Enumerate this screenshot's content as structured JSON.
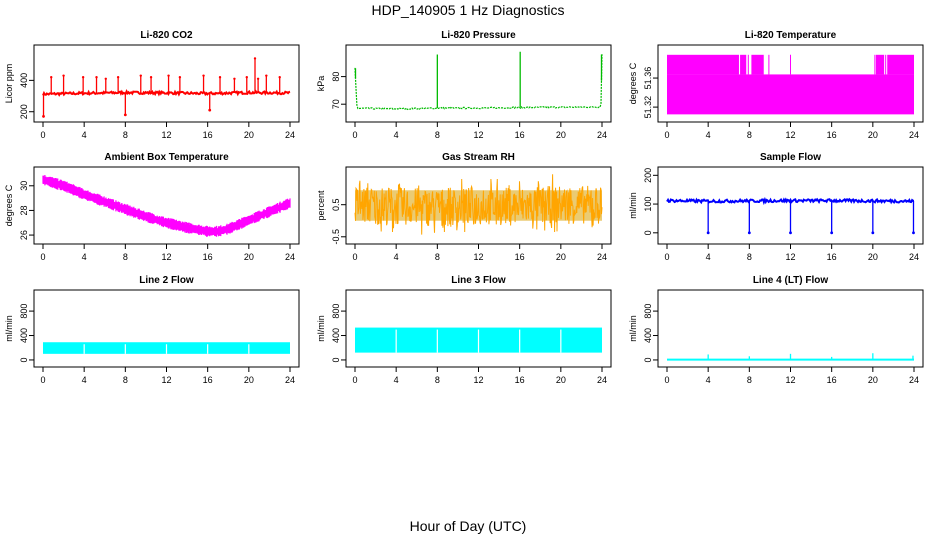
{
  "page": {
    "title": "HDP_140905  1 Hz Diagnostics",
    "x_title": "Hour of Day (UTC)"
  },
  "chart_data": [
    {
      "id": "co2",
      "type": "line",
      "title": "Li-820 CO2",
      "ylabel": "Licor ppm",
      "color": "#ff0000",
      "xlim": [
        0,
        24
      ],
      "ylim": [
        160,
        600
      ],
      "xticks": [
        0,
        4,
        8,
        12,
        16,
        20,
        24
      ],
      "yticks": [
        200,
        400
      ],
      "ytick_labels": [
        "200",
        "400"
      ],
      "series": [
        {
          "x": [
            0,
            4,
            8,
            12,
            16,
            20,
            24
          ],
          "y": [
            312,
            318,
            322,
            320,
            316,
            322,
            320
          ]
        }
      ],
      "annotations": {
        "spikes_hour": [
          0.8,
          2.0,
          3.9,
          5.2,
          6.1,
          7.3,
          9.5,
          10.5,
          12.2,
          13.3,
          15.6,
          17.2,
          18.6,
          19.8,
          20.6,
          20.9,
          21.7,
          23.0
        ],
        "spike_values": [
          420,
          430,
          420,
          420,
          410,
          420,
          430,
          420,
          430,
          420,
          430,
          420,
          410,
          420,
          540,
          410,
          430,
          420
        ],
        "dips_hour": [
          0.05,
          8.0,
          16.2
        ],
        "dip_values": [
          170,
          180,
          210
        ]
      }
    },
    {
      "id": "pressure",
      "type": "line",
      "title": "Li-820 Pressure",
      "ylabel": "kPa",
      "color": "#00bb00",
      "xlim": [
        0,
        24
      ],
      "ylim": [
        65,
        90
      ],
      "xticks": [
        0,
        4,
        8,
        12,
        16,
        20,
        24
      ],
      "yticks": [
        70,
        80
      ],
      "ytick_labels": [
        "70",
        "80"
      ],
      "series": [
        {
          "x": [
            0,
            0.2,
            4,
            8,
            12,
            16,
            20,
            23.9,
            24
          ],
          "y": [
            83,
            68.5,
            68.3,
            68.6,
            68.6,
            68.8,
            68.9,
            69.0,
            88
          ]
        }
      ],
      "annotations": {
        "spikes_hour": [
          0.05,
          8.0,
          16.05,
          23.95
        ],
        "spike_values": [
          83,
          88,
          89,
          88
        ]
      }
    },
    {
      "id": "licor_temp",
      "type": "band",
      "title": "Li-820 Temperature",
      "ylabel": "degrees C",
      "color": "#ff00ff",
      "xlim": [
        0,
        24
      ],
      "ylim": [
        51.305,
        51.4
      ],
      "xticks": [
        0,
        4,
        8,
        12,
        16,
        20,
        24
      ],
      "yticks": [
        51.32,
        51.36
      ],
      "ytick_labels": [
        "51.32",
        "51.36"
      ],
      "band": {
        "low": 51.31,
        "high": 51.365,
        "upper_segments_hour": [
          [
            0,
            6.9
          ],
          [
            7.1,
            7.7
          ],
          [
            8.2,
            9.4
          ],
          [
            20.3,
            21.1
          ],
          [
            21.4,
            24
          ]
        ],
        "upper_high": 51.392
      }
    },
    {
      "id": "ambient",
      "type": "band",
      "title": "Ambient Box Temperature",
      "ylabel": "degrees C",
      "color": "#ff00ff",
      "xlim": [
        0,
        24
      ],
      "ylim": [
        25.6,
        31.2
      ],
      "xticks": [
        0,
        4,
        8,
        12,
        16,
        20,
        24
      ],
      "yticks": [
        26,
        28,
        30
      ],
      "ytick_labels": [
        "26",
        "28",
        "30"
      ],
      "series": [
        {
          "x": [
            0,
            2,
            4,
            6,
            8,
            10,
            12,
            14,
            16,
            17,
            18,
            20,
            22,
            24
          ],
          "y": [
            30.5,
            30.0,
            29.3,
            28.7,
            28.1,
            27.5,
            27.0,
            26.6,
            26.3,
            26.3,
            26.5,
            27.2,
            27.9,
            28.6
          ]
        }
      ],
      "band_halfwidth": 0.35
    },
    {
      "id": "rh",
      "type": "band",
      "title": "Gas Stream RH",
      "ylabel": "percent",
      "color": "#ffa500",
      "xlim": [
        0,
        24
      ],
      "ylim": [
        -0.6,
        1.55
      ],
      "xticks": [
        0,
        4,
        8,
        12,
        16,
        20,
        24
      ],
      "yticks": [
        -0.5,
        0.5
      ],
      "ytick_labels": [
        "-0.5",
        "0.5"
      ],
      "series": [
        {
          "x": [
            0,
            4,
            8,
            12,
            16,
            20,
            24
          ],
          "y": [
            0.5,
            0.45,
            0.42,
            0.45,
            0.45,
            0.5,
            0.5
          ]
        }
      ],
      "band_low": -0.35,
      "band_high": 1.3
    },
    {
      "id": "sample_flow",
      "type": "line",
      "title": "Sample Flow",
      "ylabel": "ml/min",
      "color": "#0000ff",
      "xlim": [
        0,
        24
      ],
      "ylim": [
        -25,
        215
      ],
      "xticks": [
        0,
        4,
        8,
        12,
        16,
        20,
        24
      ],
      "yticks": [
        0,
        100,
        200
      ],
      "ytick_labels": [
        "0",
        "100",
        "200"
      ],
      "series": [
        {
          "x": [
            0,
            4,
            8,
            12,
            16,
            20,
            24
          ],
          "y": [
            112,
            110,
            111,
            112,
            112,
            111,
            110
          ]
        }
      ],
      "annotations": {
        "dips_hour": [
          4.0,
          8.0,
          12.0,
          16.0,
          20.0,
          23.95
        ],
        "dip_values": [
          0,
          0,
          0,
          0,
          0,
          0
        ]
      }
    },
    {
      "id": "line2",
      "type": "band",
      "title": "Line 2 Flow",
      "ylabel": "ml/min",
      "color": "#00ffff",
      "xlim": [
        0,
        24
      ],
      "ylim": [
        -50,
        1080
      ],
      "xticks": [
        0,
        4,
        8,
        12,
        16,
        20,
        24
      ],
      "yticks": [
        0,
        400,
        800
      ],
      "ytick_labels": [
        "0",
        "400",
        "800"
      ],
      "band_low": 100,
      "band_high": 290,
      "gaps_hour": [
        4.0,
        8.0,
        12.0,
        16.0,
        20.0
      ]
    },
    {
      "id": "line3",
      "type": "band",
      "title": "Line 3 Flow",
      "ylabel": "ml/min",
      "color": "#00ffff",
      "xlim": [
        0,
        24
      ],
      "ylim": [
        -50,
        1080
      ],
      "xticks": [
        0,
        4,
        8,
        12,
        16,
        20,
        24
      ],
      "yticks": [
        0,
        400,
        800
      ],
      "ytick_labels": [
        "0",
        "400",
        "800"
      ],
      "band_low": 120,
      "band_high": 530,
      "gaps_hour": [
        4.0,
        8.0,
        12.0,
        16.0,
        20.0
      ]
    },
    {
      "id": "line4",
      "type": "line",
      "title": "Line 4 (LT) Flow",
      "ylabel": "ml/min",
      "color": "#00ffff",
      "xlim": [
        0,
        24
      ],
      "ylim": [
        -50,
        1080
      ],
      "xticks": [
        0,
        4,
        8,
        12,
        16,
        20,
        24
      ],
      "yticks": [
        0,
        400,
        800
      ],
      "ytick_labels": [
        "0",
        "400",
        "800"
      ],
      "series": [
        {
          "x": [
            0,
            24
          ],
          "y": [
            5,
            5
          ]
        }
      ],
      "annotations": {
        "spikes_hour": [
          4.0,
          8.0,
          12.0,
          16.0,
          20.0,
          23.9
        ],
        "spike_values": [
          90,
          60,
          100,
          50,
          110,
          70
        ]
      }
    }
  ]
}
